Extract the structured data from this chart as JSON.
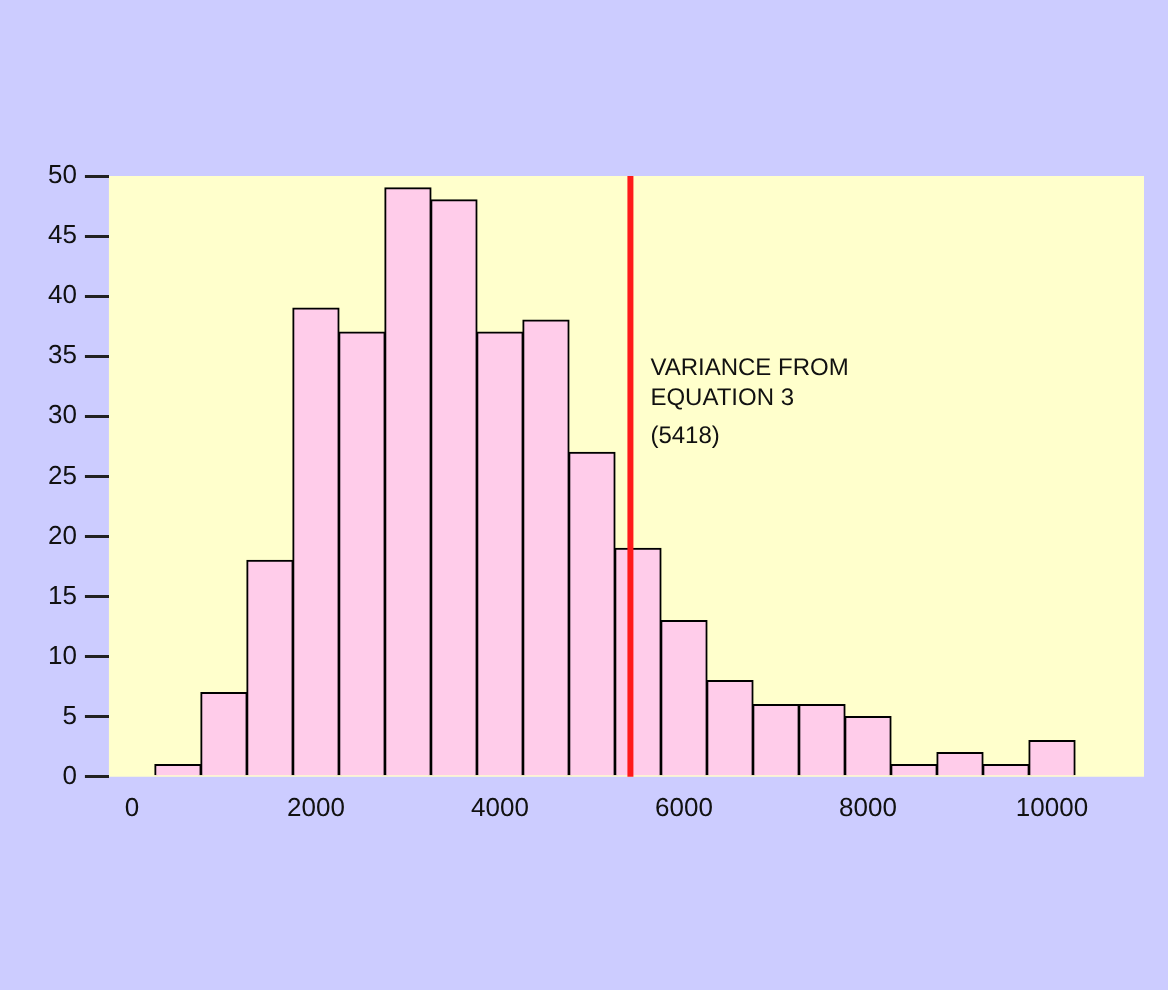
{
  "chart_data": {
    "type": "histogram",
    "bins": [
      250,
      750,
      1250,
      1750,
      2250,
      2750,
      3250,
      3750,
      4250,
      4750,
      5250,
      5750,
      6250,
      6750,
      7250,
      7750,
      8250,
      8750,
      9250,
      9750,
      10250
    ],
    "values": [
      1,
      7,
      18,
      39,
      37,
      49,
      48,
      37,
      38,
      27,
      19,
      13,
      8,
      6,
      6,
      5,
      1,
      2,
      1,
      3
    ],
    "color": "#ffccea",
    "xlim": [
      -250,
      11000
    ],
    "xticks": [
      0,
      2000,
      4000,
      6000,
      8000,
      10000
    ],
    "ylim": [
      0,
      50
    ],
    "yticks": [
      0,
      5,
      10,
      15,
      20,
      25,
      30,
      35,
      40,
      45,
      50
    ],
    "grid": false,
    "legend": false,
    "ref_lines": [
      {
        "axis": "x",
        "value": 5418,
        "label": "VARIANCE FROM EQUATION 3 (5418)",
        "color": "#ff1a1a"
      }
    ]
  }
}
